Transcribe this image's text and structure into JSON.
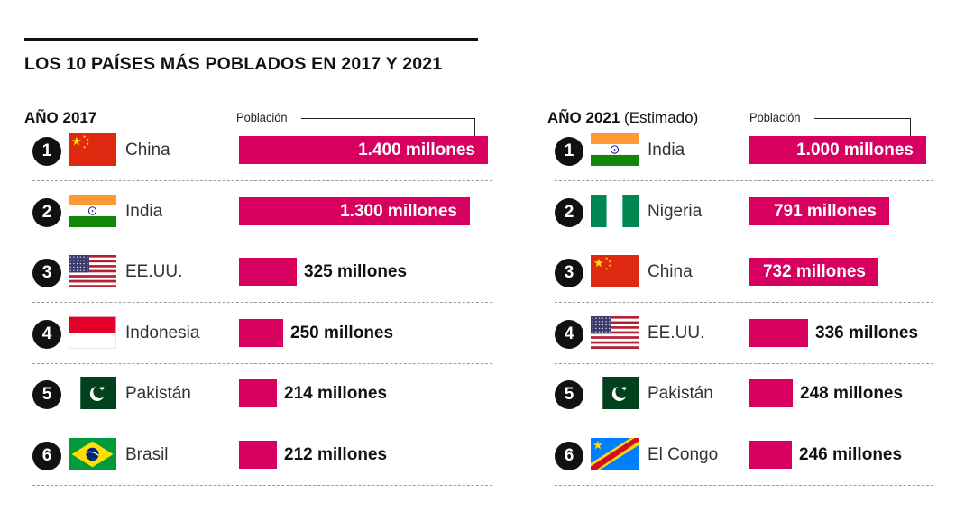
{
  "title": "LOS 10 PAÍSES MÁS POBLADOS EN 2017 Y 2021",
  "colors": {
    "bar": "#d8005e",
    "badge": "#111111",
    "separator": "#9a9a9a"
  },
  "chart_data": [
    {
      "type": "bar",
      "panel_title": "AÑO 2017",
      "panel_title_note": "",
      "value_header": "Población",
      "unit": "millones",
      "ranks": [
        "1",
        "2",
        "3",
        "4",
        "5",
        "6"
      ],
      "categories": [
        "China",
        "India",
        "EE.UU.",
        "Indonesia",
        "Pakistán",
        "Brasil"
      ],
      "flags": [
        "china-flag-icon",
        "india-flag-icon",
        "usa-flag-icon",
        "indonesia-flag-icon",
        "pakistan-flag-icon",
        "brazil-flag-icon"
      ],
      "values": [
        1400,
        1300,
        325,
        250,
        214,
        212
      ],
      "value_labels": [
        "1.400 millones",
        "1.300 millones",
        "325 millones",
        "250 millones",
        "214 millones",
        "212 millones"
      ]
    },
    {
      "type": "bar",
      "panel_title": "AÑO 2021",
      "panel_title_note": "(Estimado)",
      "value_header": "Población",
      "unit": "millones",
      "ranks": [
        "1",
        "2",
        "3",
        "4",
        "5",
        "6"
      ],
      "categories": [
        "India",
        "Nigeria",
        "China",
        "EE.UU.",
        "Pakistán",
        "El Congo"
      ],
      "flags": [
        "india-flag-icon",
        "nigeria-flag-icon",
        "china-flag-icon",
        "usa-flag-icon",
        "pakistan-flag-icon",
        "dr-congo-flag-icon"
      ],
      "values": [
        1000,
        791,
        732,
        336,
        248,
        246
      ],
      "value_labels": [
        "1.000 millones",
        "791 millones",
        "732 millones",
        "336 millones",
        "248 millones",
        "246 millones"
      ]
    }
  ]
}
